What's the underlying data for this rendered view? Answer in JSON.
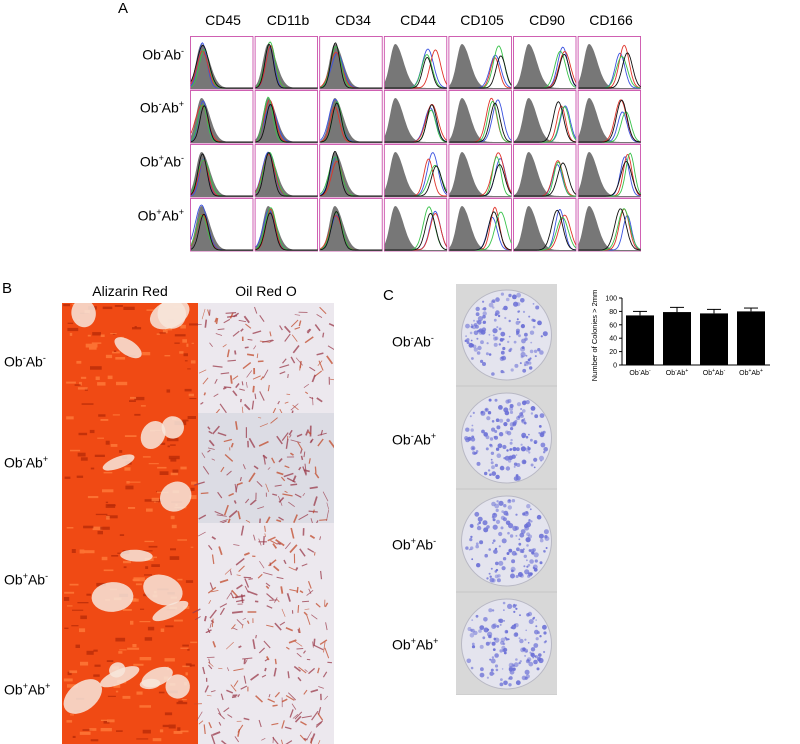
{
  "panel_a": {
    "letter": "A",
    "markers": [
      "CD45",
      "CD11b",
      "CD34",
      "CD44",
      "CD105",
      "CD90",
      "CD166"
    ],
    "rows": [
      {
        "base": "Ob",
        "s1": "-",
        "mid": "Ab",
        "s2": "-"
      },
      {
        "base": "Ob",
        "s1": "-",
        "mid": "Ab",
        "s2": "+"
      },
      {
        "base": "Ob",
        "s1": "+",
        "mid": "Ab",
        "s2": "-"
      },
      {
        "base": "Ob",
        "s1": "+",
        "mid": "Ab",
        "s2": "+"
      }
    ],
    "line_colors": [
      "#3b52e0",
      "#e0342a",
      "#38c24a",
      "#111111"
    ],
    "isotype_fill": "#777777"
  },
  "panel_b": {
    "letter": "B",
    "headers": [
      "Alizarin Red",
      "Oil Red O"
    ],
    "rows": [
      {
        "base": "Ob",
        "s1": "-",
        "mid": "Ab",
        "s2": "-"
      },
      {
        "base": "Ob",
        "s1": "-",
        "mid": "Ab",
        "s2": "+"
      },
      {
        "base": "Ob",
        "s1": "+",
        "mid": "Ab",
        "s2": "-"
      },
      {
        "base": "Ob",
        "s1": "+",
        "mid": "Ab",
        "s2": "+"
      }
    ],
    "alizarin_color": "#f04a14",
    "oil_red_color": "#9a3a4a"
  },
  "panel_c": {
    "letter": "C",
    "rows": [
      {
        "base": "Ob",
        "s1": "-",
        "mid": "Ab",
        "s2": "-"
      },
      {
        "base": "Ob",
        "s1": "-",
        "mid": "Ab",
        "s2": "+"
      },
      {
        "base": "Ob",
        "s1": "+",
        "mid": "Ab",
        "s2": "-"
      },
      {
        "base": "Ob",
        "s1": "+",
        "mid": "Ab",
        "s2": "+"
      }
    ],
    "colony_color": "#6a6fd6"
  },
  "chart_data": {
    "type": "bar",
    "title": "",
    "xlabel": "",
    "ylabel": "Number of Colonies > 2mm",
    "categories": [
      "Ob-Ab-",
      "Ob-Ab+",
      "Ob+Ab-",
      "Ob+Ab+"
    ],
    "category_labels": [
      {
        "base": "Ob",
        "s1": "-",
        "mid": "Ab",
        "s2": "-"
      },
      {
        "base": "Ob",
        "s1": "-",
        "mid": "Ab",
        "s2": "+"
      },
      {
        "base": "Ob",
        "s1": "+",
        "mid": "Ab",
        "s2": "-"
      },
      {
        "base": "Ob",
        "s1": "+",
        "mid": "Ab",
        "s2": "+"
      }
    ],
    "values": [
      74,
      79,
      77,
      80
    ],
    "errors": [
      6,
      7,
      6,
      5
    ],
    "ylim": [
      0,
      100
    ],
    "yticks": [
      "0",
      "20",
      "40",
      "60",
      "80",
      "100"
    ],
    "bar_color": "#000000",
    "grid": false
  }
}
